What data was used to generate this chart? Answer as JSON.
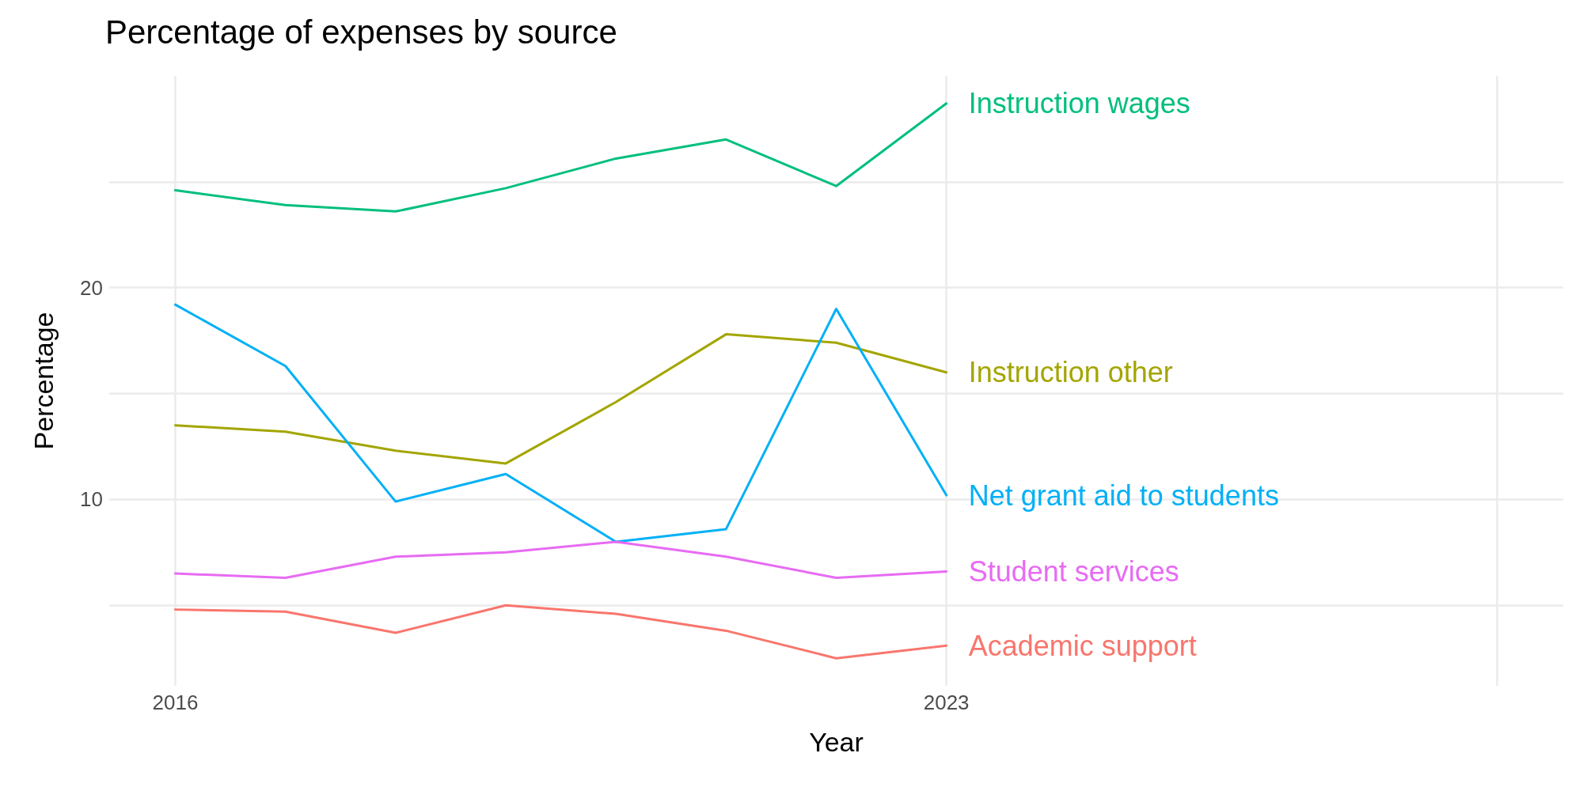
{
  "chart_data": {
    "type": "line",
    "title": "Percentage of expenses by source",
    "xlabel": "Year",
    "ylabel": "Percentage",
    "x": [
      2016,
      2017,
      2018,
      2019,
      2020,
      2021,
      2022,
      2023
    ],
    "series": [
      {
        "name": "Instruction wages",
        "color": "#00bf7d",
        "values": [
          24.6,
          23.9,
          23.6,
          24.7,
          26.1,
          27.0,
          24.8,
          28.7
        ]
      },
      {
        "name": "Instruction other",
        "color": "#a3a500",
        "values": [
          13.5,
          13.2,
          12.3,
          11.7,
          14.6,
          17.8,
          17.4,
          16.0
        ]
      },
      {
        "name": "Net grant aid to students",
        "color": "#00b0f6",
        "values": [
          19.2,
          16.3,
          9.9,
          11.2,
          8.0,
          8.6,
          19.0,
          10.2
        ]
      },
      {
        "name": "Student services",
        "color": "#e76bf3",
        "values": [
          6.5,
          6.3,
          7.3,
          7.5,
          8.0,
          7.3,
          6.3,
          6.6
        ]
      },
      {
        "name": "Academic support",
        "color": "#f8766d",
        "values": [
          4.8,
          4.7,
          3.7,
          5.0,
          4.6,
          3.8,
          2.5,
          3.1
        ]
      }
    ],
    "xlim": [
      2015.4,
      2028.6
    ],
    "xticks": [
      2016,
      2023,
      {
        "value": 2028,
        "label": null
      }
    ],
    "ylim": [
      1.2,
      30
    ],
    "yticks": [
      {
        "value": 5,
        "label": null
      },
      10,
      {
        "value": 15,
        "label": null
      },
      20,
      {
        "value": 25,
        "label": null
      }
    ],
    "grid": true,
    "legend": false,
    "marker": "none",
    "line_style": "solid"
  }
}
